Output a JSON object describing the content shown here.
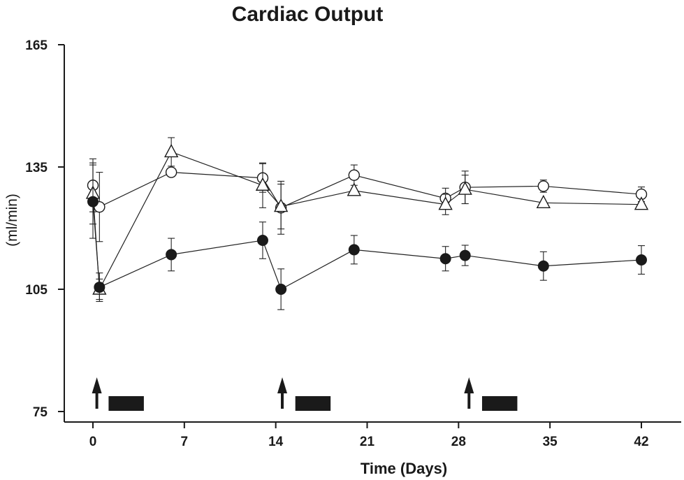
{
  "chart_data": {
    "type": "line",
    "title": "Cardiac Output",
    "xlabel": "Time (Days)",
    "ylabel": "(ml/min)",
    "xlim": [
      -2,
      45
    ],
    "ylim": [
      75,
      165
    ],
    "xticks": [
      0,
      7,
      14,
      21,
      28,
      35,
      42
    ],
    "yticks": [
      75,
      105,
      135,
      165
    ],
    "grid": false,
    "legend": "none",
    "series": [
      {
        "marker": "open-circle",
        "points": [
          {
            "x": 0,
            "y": 130.5,
            "err": 6.5
          },
          {
            "x": 0.5,
            "y": 125.2,
            "err": 8.5
          },
          {
            "x": 6,
            "y": 133.7,
            "err": 0
          },
          {
            "x": 13,
            "y": 132.3,
            "err": 3.5
          },
          {
            "x": 14.4,
            "y": 125.0,
            "err": 6.5
          },
          {
            "x": 20,
            "y": 133.0,
            "err": 2.5
          },
          {
            "x": 27,
            "y": 127.3,
            "err": 2.5
          },
          {
            "x": 28.5,
            "y": 130.0,
            "err": 4.0
          },
          {
            "x": 34.5,
            "y": 130.3,
            "err": 1.5
          },
          {
            "x": 42,
            "y": 128.3,
            "err": 1.8
          }
        ]
      },
      {
        "marker": "open-triangle",
        "points": [
          {
            "x": 0,
            "y": 128.5,
            "err": 7.5
          },
          {
            "x": 0.5,
            "y": 105.0,
            "err": 2.5
          },
          {
            "x": 6,
            "y": 138.7,
            "err": 3.5
          },
          {
            "x": 13,
            "y": 130.5,
            "err": 5.5
          },
          {
            "x": 14.4,
            "y": 125.3,
            "err": 5.5
          },
          {
            "x": 20,
            "y": 129.2,
            "err": 0
          },
          {
            "x": 27,
            "y": 125.8,
            "err": 2.5
          },
          {
            "x": 28.5,
            "y": 129.5,
            "err": 3.5
          },
          {
            "x": 34.5,
            "y": 126.2,
            "err": 0
          },
          {
            "x": 42,
            "y": 125.8,
            "err": 0
          }
        ]
      },
      {
        "marker": "filled-circle",
        "points": [
          {
            "x": 0,
            "y": 126.5,
            "err": 9.0
          },
          {
            "x": 0.5,
            "y": 105.5,
            "err": 3.5
          },
          {
            "x": 6,
            "y": 113.5,
            "err": 4.0
          },
          {
            "x": 13,
            "y": 117.0,
            "err": 4.5
          },
          {
            "x": 14.4,
            "y": 105.0,
            "err": 5.0
          },
          {
            "x": 20,
            "y": 114.7,
            "err": 3.5
          },
          {
            "x": 27,
            "y": 112.5,
            "err": 3.0
          },
          {
            "x": 28.5,
            "y": 113.3,
            "err": 2.5
          },
          {
            "x": 34.5,
            "y": 110.7,
            "err": 3.5
          },
          {
            "x": 42,
            "y": 112.2,
            "err": 3.5
          }
        ]
      }
    ],
    "annotations": {
      "arrows_x": [
        0.3,
        14.5,
        28.8
      ],
      "bars": [
        [
          1.2,
          3.9
        ],
        [
          15.5,
          18.2
        ],
        [
          29.8,
          32.5
        ]
      ]
    }
  }
}
